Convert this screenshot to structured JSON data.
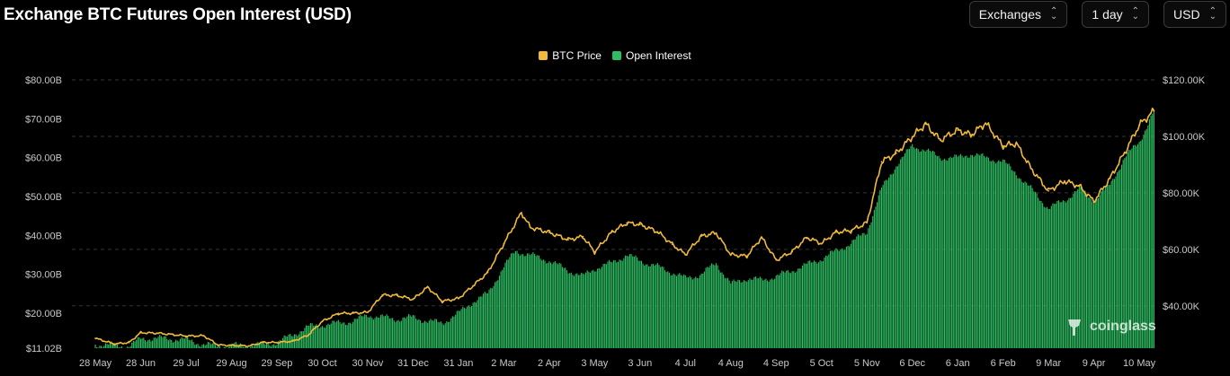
{
  "header": {
    "title": "Exchange BTC Futures Open Interest (USD)"
  },
  "selectors": [
    {
      "name": "exchanges-select",
      "label": "Exchanges"
    },
    {
      "name": "interval-select",
      "label": "1 day"
    },
    {
      "name": "currency-select",
      "label": "USD"
    }
  ],
  "watermark": {
    "text": "coinglass"
  },
  "colors": {
    "price": "#f0b93a",
    "oi": "#2ebd62",
    "grid": "#333333"
  },
  "chart_data": {
    "type": "bar",
    "title": "Exchange BTC Futures Open Interest (USD)",
    "legend": {
      "placement": "top-center"
    },
    "grid": true,
    "x_ticks": [
      "28 May",
      "28 Jun",
      "29 Jul",
      "29 Aug",
      "29 Sep",
      "30 Oct",
      "30 Nov",
      "31 Dec",
      "31 Jan",
      "2 Mar",
      "2 Apr",
      "3 May",
      "3 Jun",
      "4 Jul",
      "4 Aug",
      "4 Sep",
      "5 Oct",
      "5 Nov",
      "6 Dec",
      "6 Jan",
      "6 Feb",
      "9 Mar",
      "9 Apr",
      "10 May"
    ],
    "y_left": {
      "ticks": [
        "$11.02B",
        "$20.00B",
        "$30.00B",
        "$40.00B",
        "$50.00B",
        "$60.00B",
        "$70.00B",
        "$80.00B"
      ],
      "range": [
        11.02,
        80
      ]
    },
    "y_right": {
      "ticks": [
        "$40.00K",
        "$60.00K",
        "$80.00K",
        "$100.00K",
        "$120.00K"
      ],
      "range": [
        25000,
        120000
      ]
    },
    "series": [
      {
        "name": "Open Interest",
        "kind": "bar",
        "axis": "left",
        "unit": "USD billions",
        "points": [
          [
            "28 May",
            12.0
          ],
          [
            "10 Jun",
            11.8
          ],
          [
            "20 Jun",
            11.5
          ],
          [
            "28 Jun",
            13.5
          ],
          [
            "10 Jul",
            13.6
          ],
          [
            "20 Jul",
            13.4
          ],
          [
            "29 Jul",
            13.2
          ],
          [
            "10 Aug",
            12.0
          ],
          [
            "20 Aug",
            11.6
          ],
          [
            "29 Aug",
            11.7
          ],
          [
            "10 Sep",
            11.8
          ],
          [
            "20 Sep",
            12.0
          ],
          [
            "29 Sep",
            12.5
          ],
          [
            "10 Oct",
            14.5
          ],
          [
            "20 Oct",
            16.5
          ],
          [
            "30 Oct",
            17.0
          ],
          [
            "10 Nov",
            17.5
          ],
          [
            "20 Nov",
            18.0
          ],
          [
            "30 Nov",
            19.5
          ],
          [
            "10 Dec",
            19.0
          ],
          [
            "20 Dec",
            18.5
          ],
          [
            "31 Dec",
            19.0
          ],
          [
            "10 Jan",
            18.0
          ],
          [
            "20 Jan",
            17.5
          ],
          [
            "31 Jan",
            20.0
          ],
          [
            "10 Feb",
            23.0
          ],
          [
            "20 Feb",
            25.0
          ],
          [
            "2 Mar",
            32.0
          ],
          [
            "10 Mar",
            36.0
          ],
          [
            "20 Mar",
            35.0
          ],
          [
            "2 Apr",
            33.5
          ],
          [
            "15 Apr",
            31.0
          ],
          [
            "25 Apr",
            29.5
          ],
          [
            "3 May",
            31.5
          ],
          [
            "15 May",
            33.0
          ],
          [
            "25 May",
            35.0
          ],
          [
            "3 Jun",
            33.5
          ],
          [
            "15 Jun",
            32.0
          ],
          [
            "25 Jun",
            30.5
          ],
          [
            "4 Jul",
            29.0
          ],
          [
            "15 Jul",
            30.0
          ],
          [
            "25 Jul",
            33.0
          ],
          [
            "4 Aug",
            27.5
          ],
          [
            "15 Aug",
            29.0
          ],
          [
            "25 Aug",
            28.5
          ],
          [
            "4 Sep",
            29.5
          ],
          [
            "15 Sep",
            31.0
          ],
          [
            "25 Sep",
            32.5
          ],
          [
            "5 Oct",
            34.0
          ],
          [
            "15 Oct",
            36.0
          ],
          [
            "25 Oct",
            38.0
          ],
          [
            "5 Nov",
            41.0
          ],
          [
            "15 Nov",
            52.0
          ],
          [
            "25 Nov",
            58.0
          ],
          [
            "6 Dec",
            63.0
          ],
          [
            "15 Dec",
            62.0
          ],
          [
            "25 Dec",
            60.0
          ],
          [
            "6 Jan",
            60.0
          ],
          [
            "15 Jan",
            61.0
          ],
          [
            "25 Jan",
            60.0
          ],
          [
            "6 Feb",
            59.0
          ],
          [
            "15 Feb",
            56.0
          ],
          [
            "25 Feb",
            52.0
          ],
          [
            "9 Mar",
            47.0
          ],
          [
            "20 Mar",
            49.0
          ],
          [
            "30 Mar",
            52.0
          ],
          [
            "9 Apr",
            49.0
          ],
          [
            "20 Apr",
            53.0
          ],
          [
            "30 Apr",
            60.0
          ],
          [
            "10 May",
            64.0
          ],
          [
            "20 May",
            72.0
          ]
        ]
      },
      {
        "name": "BTC Price",
        "kind": "line",
        "axis": "right",
        "unit": "USD",
        "points": [
          [
            "28 May",
            28500
          ],
          [
            "10 Jun",
            26500
          ],
          [
            "20 Jun",
            27000
          ],
          [
            "28 Jun",
            30500
          ],
          [
            "10 Jul",
            30300
          ],
          [
            "20 Jul",
            29800
          ],
          [
            "29 Jul",
            29300
          ],
          [
            "10 Aug",
            29400
          ],
          [
            "20 Aug",
            26100
          ],
          [
            "29 Aug",
            26000
          ],
          [
            "10 Sep",
            25800
          ],
          [
            "20 Sep",
            27100
          ],
          [
            "29 Sep",
            27000
          ],
          [
            "10 Oct",
            27500
          ],
          [
            "20 Oct",
            29500
          ],
          [
            "30 Oct",
            34500
          ],
          [
            "10 Nov",
            37300
          ],
          [
            "20 Nov",
            37400
          ],
          [
            "30 Nov",
            37700
          ],
          [
            "10 Dec",
            43800
          ],
          [
            "20 Dec",
            43700
          ],
          [
            "31 Dec",
            42300
          ],
          [
            "10 Jan",
            46600
          ],
          [
            "20 Jan",
            41600
          ],
          [
            "31 Jan",
            42600
          ],
          [
            "10 Feb",
            47100
          ],
          [
            "20 Feb",
            51800
          ],
          [
            "2 Mar",
            62000
          ],
          [
            "14 Mar",
            73000
          ],
          [
            "20 Mar",
            67800
          ],
          [
            "2 Apr",
            66000
          ],
          [
            "15 Apr",
            63400
          ],
          [
            "25 Apr",
            64500
          ],
          [
            "3 May",
            59100
          ],
          [
            "15 May",
            66200
          ],
          [
            "25 May",
            69300
          ],
          [
            "3 Jun",
            68800
          ],
          [
            "15 Jun",
            66200
          ],
          [
            "25 Jun",
            61800
          ],
          [
            "4 Jul",
            58200
          ],
          [
            "15 Jul",
            64700
          ],
          [
            "25 Jul",
            65800
          ],
          [
            "4 Aug",
            58100
          ],
          [
            "15 Aug",
            57600
          ],
          [
            "25 Aug",
            64200
          ],
          [
            "4 Sep",
            56200
          ],
          [
            "15 Sep",
            59200
          ],
          [
            "25 Sep",
            64200
          ],
          [
            "5 Oct",
            62100
          ],
          [
            "15 Oct",
            66100
          ],
          [
            "25 Oct",
            66600
          ],
          [
            "5 Nov",
            69400
          ],
          [
            "15 Nov",
            91000
          ],
          [
            "25 Nov",
            94000
          ],
          [
            "6 Dec",
            99900
          ],
          [
            "15 Dec",
            104400
          ],
          [
            "25 Dec",
            98700
          ],
          [
            "6 Jan",
            102200
          ],
          [
            "15 Jan",
            100500
          ],
          [
            "25 Jan",
            104700
          ],
          [
            "6 Feb",
            96600
          ],
          [
            "15 Feb",
            97500
          ],
          [
            "25 Feb",
            88700
          ],
          [
            "9 Mar",
            80700
          ],
          [
            "20 Mar",
            84200
          ],
          [
            "30 Mar",
            82400
          ],
          [
            "9 Apr",
            77000
          ],
          [
            "20 Apr",
            85100
          ],
          [
            "30 Apr",
            94200
          ],
          [
            "10 May",
            104000
          ],
          [
            "20 May",
            109000
          ]
        ]
      }
    ]
  }
}
